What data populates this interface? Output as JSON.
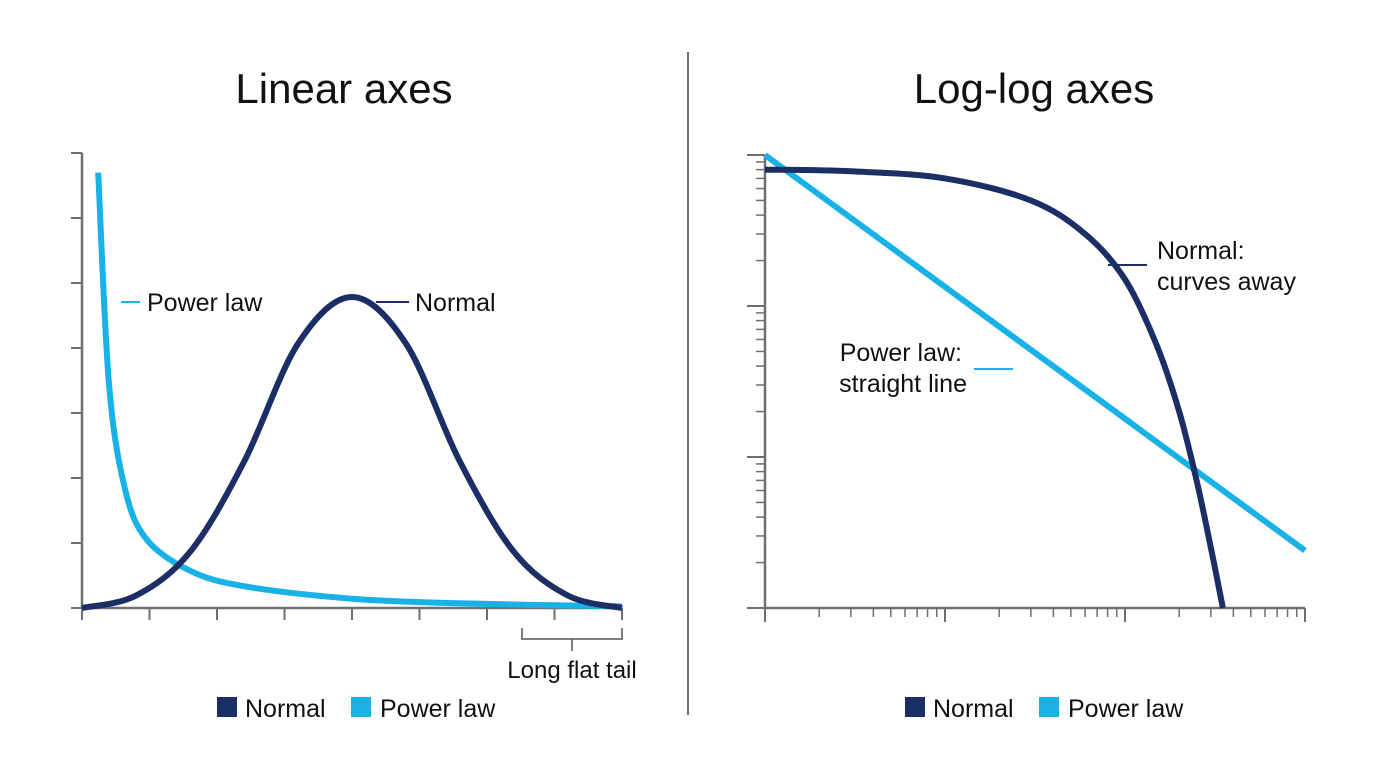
{
  "chart_data": [
    {
      "type": "line",
      "title": "Linear axes",
      "xscale": "linear",
      "yscale": "linear",
      "grid": false,
      "legend": {
        "placement": "bottom-center",
        "entries": [
          "Normal",
          "Power law"
        ]
      },
      "series": [
        {
          "name": "Normal",
          "color": "#1b2f66",
          "x": [
            0,
            0.1,
            0.2,
            0.3,
            0.4,
            0.5,
            0.6,
            0.7,
            0.8,
            0.9,
            1.0
          ],
          "y": [
            0.0,
            0.04,
            0.18,
            0.47,
            0.85,
            1.0,
            0.85,
            0.47,
            0.18,
            0.04,
            0.0
          ]
        },
        {
          "name": "Power law",
          "color": "#18b2e6",
          "x": [
            0.03,
            0.05,
            0.08,
            0.12,
            0.2,
            0.3,
            0.5,
            0.7,
            1.0
          ],
          "y": [
            1.4,
            0.72,
            0.38,
            0.22,
            0.12,
            0.07,
            0.03,
            0.015,
            0.005
          ]
        }
      ],
      "annotations": [
        {
          "text": "Power law",
          "target": "Power law"
        },
        {
          "text": "Normal",
          "target": "Normal"
        },
        {
          "text": "Long flat tail",
          "target": "x-axis"
        }
      ]
    },
    {
      "type": "line",
      "title": "Log-log axes",
      "xscale": "log",
      "yscale": "log",
      "xlim": [
        1,
        1000
      ],
      "ylim": [
        0.001,
        1
      ],
      "grid": false,
      "legend": {
        "placement": "bottom-center",
        "entries": [
          "Normal",
          "Power law"
        ]
      },
      "series": [
        {
          "name": "Normal",
          "color": "#1b2f66",
          "x": [
            1,
            3,
            10,
            30,
            60,
            100,
            150,
            200,
            250,
            300,
            350
          ],
          "y": [
            0.8,
            0.78,
            0.7,
            0.5,
            0.3,
            0.15,
            0.055,
            0.02,
            0.007,
            0.0025,
            0.001
          ]
        },
        {
          "name": "Power law",
          "color": "#18b2e6",
          "x": [
            1,
            1000
          ],
          "y": [
            1.0,
            0.0024
          ]
        }
      ],
      "annotations": [
        {
          "text_lines": [
            "Normal:",
            "curves away"
          ],
          "target": "Normal"
        },
        {
          "text_lines": [
            "Power law:",
            "straight line"
          ],
          "target": "Power law"
        }
      ]
    }
  ]
}
